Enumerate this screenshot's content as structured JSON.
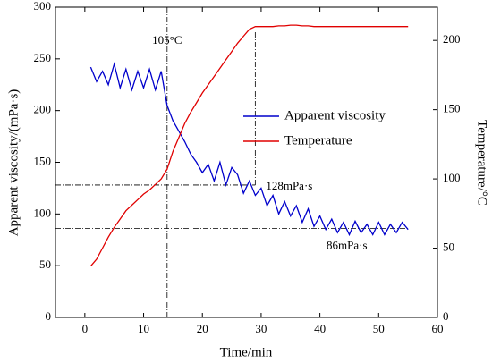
{
  "chart_data": {
    "type": "line",
    "xlabel": "Time/min",
    "ylabel": "Apparent viscosity/(mPa·s)",
    "y2label": "Temperature/°C",
    "x": [
      1,
      2,
      3,
      4,
      5,
      6,
      7,
      8,
      9,
      10,
      11,
      12,
      13,
      14,
      15,
      16,
      17,
      18,
      19,
      20,
      21,
      22,
      23,
      24,
      25,
      26,
      27,
      28,
      29,
      30,
      31,
      32,
      33,
      34,
      35,
      36,
      37,
      38,
      39,
      40,
      41,
      42,
      43,
      44,
      45,
      46,
      47,
      48,
      49,
      50,
      51,
      52,
      53,
      54,
      55
    ],
    "series": [
      {
        "name": "Apparent viscosity",
        "color": "#0000cc",
        "axis": "y",
        "values": [
          242,
          228,
          238,
          225,
          245,
          222,
          240,
          220,
          238,
          222,
          240,
          220,
          238,
          205,
          190,
          180,
          170,
          158,
          150,
          140,
          148,
          132,
          150,
          128,
          145,
          138,
          120,
          132,
          118,
          125,
          108,
          118,
          100,
          112,
          98,
          108,
          92,
          105,
          88,
          98,
          85,
          95,
          82,
          92,
          80,
          93,
          82,
          90,
          80,
          92,
          80,
          90,
          82,
          92,
          85
        ]
      },
      {
        "name": "Temperature",
        "color": "#e00000",
        "axis": "y2",
        "values": [
          37,
          42,
          50,
          58,
          65,
          71,
          77,
          81,
          85,
          89,
          92,
          96,
          100,
          107,
          120,
          130,
          140,
          148,
          155,
          162,
          168,
          174,
          180,
          186,
          192,
          198,
          203,
          208,
          210,
          210,
          210,
          210,
          210.5,
          210.5,
          211,
          211,
          210.5,
          210.5,
          210,
          210,
          210,
          210,
          210,
          210,
          210,
          210,
          210,
          210,
          210,
          210,
          210,
          210,
          210,
          210,
          210
        ]
      }
    ],
    "xlim": [
      -5,
      60
    ],
    "xticks": [
      0,
      10,
      20,
      30,
      40,
      50,
      60
    ],
    "ylim": [
      0,
      300
    ],
    "yticks": [
      0,
      50,
      100,
      150,
      200,
      250,
      300
    ],
    "y2lim": [
      0,
      224
    ],
    "y2ticks": [
      0,
      50,
      100,
      150,
      200
    ],
    "legend": "right",
    "annotations": [
      {
        "text": "105°C",
        "x": 14
      },
      {
        "text": "128mPa·s",
        "x": 29,
        "y": 128
      },
      {
        "text": "86mPa·s",
        "y": 86
      }
    ]
  }
}
